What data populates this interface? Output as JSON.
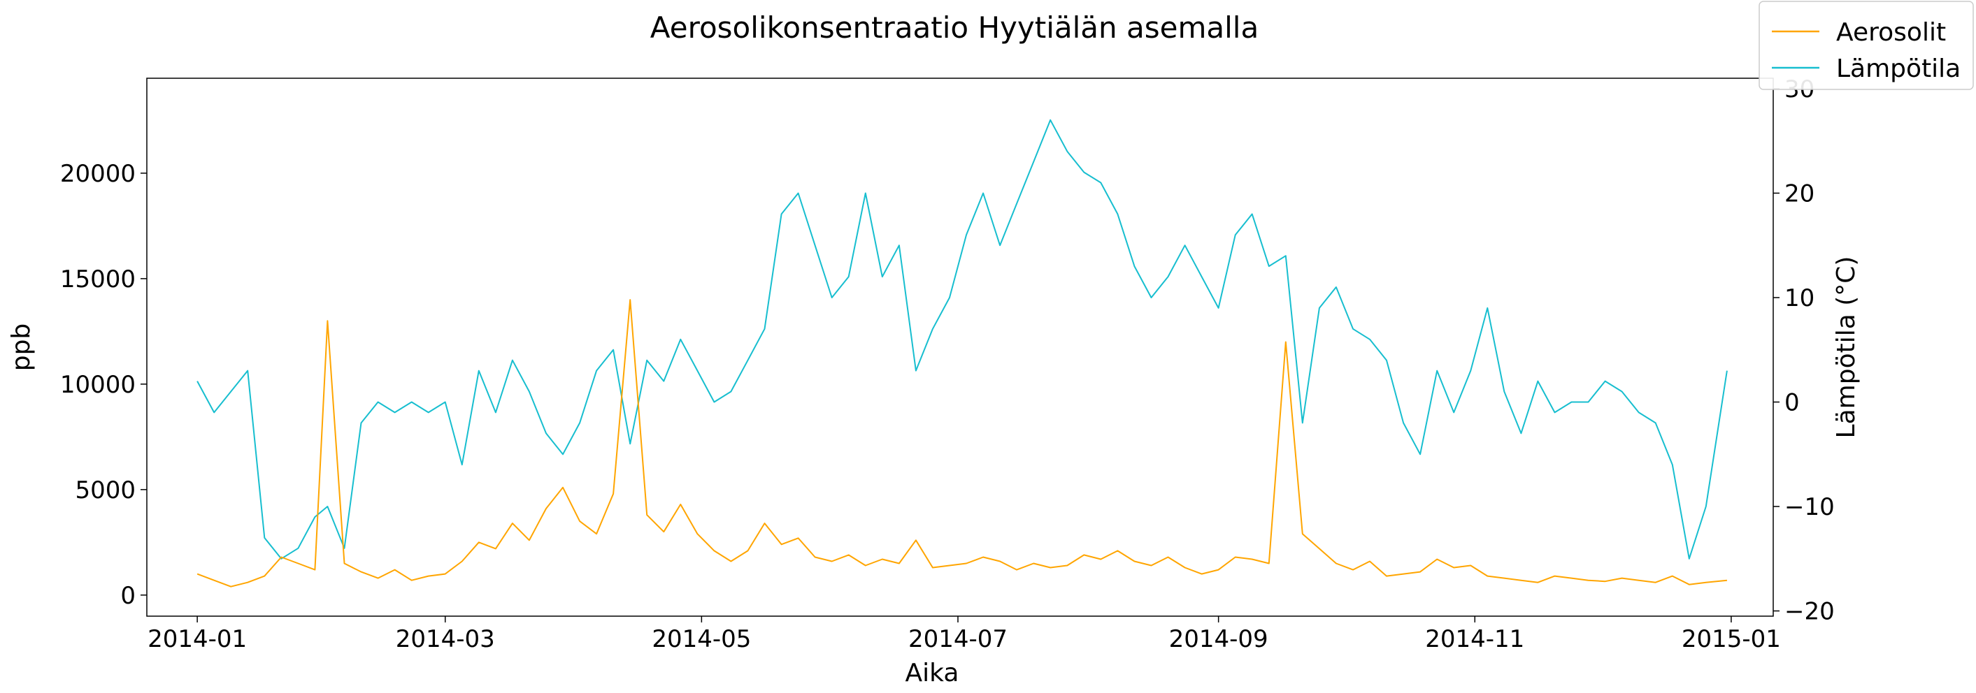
{
  "chart_data": {
    "type": "line",
    "title": "Aerosolikonsentraatio Hyytiälän asemalla",
    "xlabel": "Aika",
    "ylabel": "ppb",
    "y2label": "Lämpötila (°C)",
    "xlim": [
      "2013-12-20",
      "2015-01-11"
    ],
    "ylim": [
      -1000,
      24500
    ],
    "y2lim": [
      -20.5,
      31
    ],
    "x_ticks": [
      "2014-01",
      "2014-03",
      "2014-05",
      "2014-07",
      "2014-09",
      "2014-11",
      "2015-01"
    ],
    "y_ticks": [
      0,
      5000,
      10000,
      15000,
      20000
    ],
    "y2_ticks": [
      -20,
      -10,
      0,
      10,
      20,
      30
    ],
    "grid": false,
    "legend_position": "top-right",
    "series": [
      {
        "name": "Aerosolit",
        "axis": "left",
        "color": "#ffa500",
        "x": [
          "2014-01-01",
          "2014-01-05",
          "2014-01-09",
          "2014-01-13",
          "2014-01-17",
          "2014-01-21",
          "2014-01-25",
          "2014-01-29",
          "2014-02-01",
          "2014-02-05",
          "2014-02-09",
          "2014-02-13",
          "2014-02-17",
          "2014-02-21",
          "2014-02-25",
          "2014-03-01",
          "2014-03-05",
          "2014-03-09",
          "2014-03-13",
          "2014-03-17",
          "2014-03-21",
          "2014-03-25",
          "2014-03-29",
          "2014-04-02",
          "2014-04-06",
          "2014-04-10",
          "2014-04-14",
          "2014-04-18",
          "2014-04-22",
          "2014-04-26",
          "2014-04-30",
          "2014-05-04",
          "2014-05-08",
          "2014-05-12",
          "2014-05-16",
          "2014-05-20",
          "2014-05-24",
          "2014-05-28",
          "2014-06-01",
          "2014-06-05",
          "2014-06-09",
          "2014-06-13",
          "2014-06-17",
          "2014-06-21",
          "2014-06-25",
          "2014-06-29",
          "2014-07-03",
          "2014-07-07",
          "2014-07-11",
          "2014-07-15",
          "2014-07-19",
          "2014-07-23",
          "2014-07-27",
          "2014-07-31",
          "2014-08-04",
          "2014-08-08",
          "2014-08-12",
          "2014-08-16",
          "2014-08-20",
          "2014-08-24",
          "2014-08-28",
          "2014-09-01",
          "2014-09-05",
          "2014-09-09",
          "2014-09-13",
          "2014-09-17",
          "2014-09-21",
          "2014-09-25",
          "2014-09-29",
          "2014-10-03",
          "2014-10-07",
          "2014-10-11",
          "2014-10-15",
          "2014-10-19",
          "2014-10-23",
          "2014-10-27",
          "2014-10-31",
          "2014-11-04",
          "2014-11-08",
          "2014-11-12",
          "2014-11-16",
          "2014-11-20",
          "2014-11-24",
          "2014-11-28",
          "2014-12-02",
          "2014-12-06",
          "2014-12-10",
          "2014-12-14",
          "2014-12-18",
          "2014-12-22",
          "2014-12-26",
          "2014-12-31"
        ],
        "values": [
          1000,
          700,
          400,
          600,
          900,
          1800,
          1500,
          1200,
          13000,
          1500,
          1100,
          800,
          1200,
          700,
          900,
          1000,
          1600,
          2500,
          2200,
          3400,
          2600,
          4100,
          5100,
          3500,
          2900,
          4800,
          14000,
          3800,
          3000,
          4300,
          2900,
          2100,
          1600,
          2100,
          3400,
          2400,
          2700,
          1800,
          1600,
          1900,
          1400,
          1700,
          1500,
          2600,
          1300,
          1400,
          1500,
          1800,
          1600,
          1200,
          1500,
          1300,
          1400,
          1900,
          1700,
          2100,
          1600,
          1400,
          1800,
          1300,
          1000,
          1200,
          1800,
          1700,
          1500,
          12000,
          2900,
          2200,
          1500,
          1200,
          1600,
          900,
          1000,
          1100,
          1700,
          1300,
          1400,
          900,
          800,
          700,
          600,
          900,
          800,
          700,
          650,
          800,
          700,
          600,
          900,
          500,
          600,
          700
        ]
      },
      {
        "name": "Lämpötila",
        "axis": "right",
        "color": "#17becf",
        "x": [
          "2014-01-01",
          "2014-01-05",
          "2014-01-09",
          "2014-01-13",
          "2014-01-17",
          "2014-01-21",
          "2014-01-25",
          "2014-01-29",
          "2014-02-01",
          "2014-02-05",
          "2014-02-09",
          "2014-02-13",
          "2014-02-17",
          "2014-02-21",
          "2014-02-25",
          "2014-03-01",
          "2014-03-05",
          "2014-03-09",
          "2014-03-13",
          "2014-03-17",
          "2014-03-21",
          "2014-03-25",
          "2014-03-29",
          "2014-04-02",
          "2014-04-06",
          "2014-04-10",
          "2014-04-14",
          "2014-04-18",
          "2014-04-22",
          "2014-04-26",
          "2014-04-30",
          "2014-05-04",
          "2014-05-08",
          "2014-05-12",
          "2014-05-16",
          "2014-05-20",
          "2014-05-24",
          "2014-05-28",
          "2014-06-01",
          "2014-06-05",
          "2014-06-09",
          "2014-06-13",
          "2014-06-17",
          "2014-06-21",
          "2014-06-25",
          "2014-06-29",
          "2014-07-03",
          "2014-07-07",
          "2014-07-11",
          "2014-07-15",
          "2014-07-19",
          "2014-07-23",
          "2014-07-27",
          "2014-07-31",
          "2014-08-04",
          "2014-08-08",
          "2014-08-12",
          "2014-08-16",
          "2014-08-20",
          "2014-08-24",
          "2014-08-28",
          "2014-09-01",
          "2014-09-05",
          "2014-09-09",
          "2014-09-13",
          "2014-09-17",
          "2014-09-21",
          "2014-09-25",
          "2014-09-29",
          "2014-10-03",
          "2014-10-07",
          "2014-10-11",
          "2014-10-15",
          "2014-10-19",
          "2014-10-23",
          "2014-10-27",
          "2014-10-31",
          "2014-11-04",
          "2014-11-08",
          "2014-11-12",
          "2014-11-16",
          "2014-11-20",
          "2014-11-24",
          "2014-11-28",
          "2014-12-02",
          "2014-12-06",
          "2014-12-10",
          "2014-12-14",
          "2014-12-18",
          "2014-12-22",
          "2014-12-26",
          "2014-12-31"
        ],
        "values": [
          2,
          -1,
          1,
          3,
          -13,
          -15,
          -14,
          -11,
          -10,
          -14,
          -2,
          0,
          -1,
          0,
          -1,
          0,
          -6,
          3,
          -1,
          4,
          1,
          -3,
          -5,
          -2,
          3,
          5,
          -4,
          4,
          2,
          6,
          3,
          0,
          1,
          4,
          7,
          18,
          20,
          15,
          10,
          12,
          20,
          12,
          15,
          3,
          7,
          10,
          16,
          20,
          15,
          19,
          23,
          27,
          24,
          22,
          21,
          18,
          13,
          10,
          12,
          15,
          12,
          9,
          16,
          18,
          13,
          14,
          -2,
          9,
          11,
          7,
          6,
          4,
          -2,
          -5,
          3,
          -1,
          3,
          9,
          1,
          -3,
          2,
          -1,
          0,
          0,
          2,
          1,
          -1,
          -2,
          -6,
          -15,
          -10,
          3
        ]
      }
    ]
  }
}
